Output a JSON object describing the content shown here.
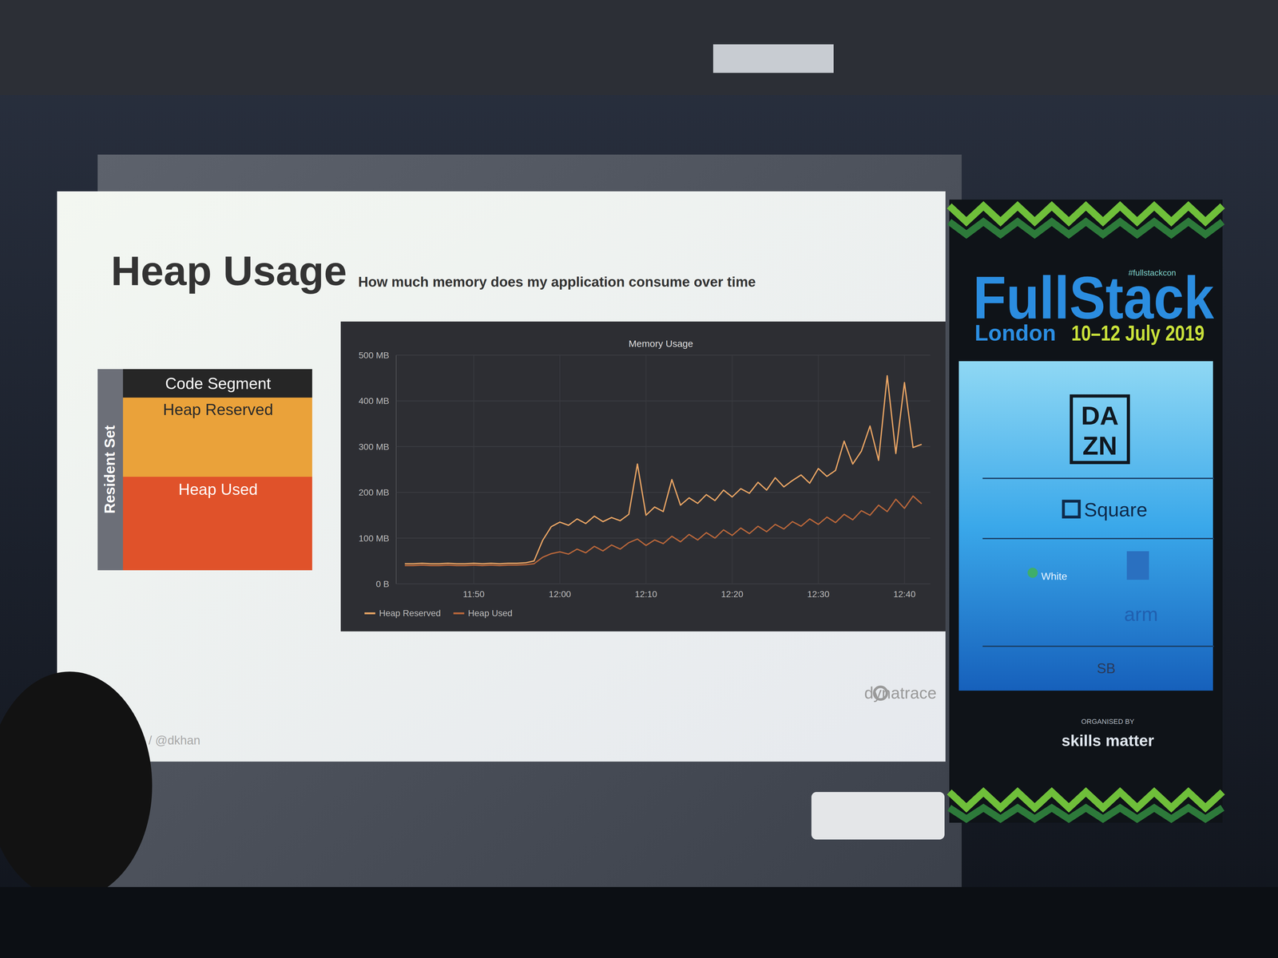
{
  "slide": {
    "title": "Heap Usage",
    "subtitle": "How much memory does my application consume over time",
    "footer": "n / @dkhan",
    "logo": "dynatrace",
    "diagram": {
      "side_label": "Resident Set",
      "segments": [
        "Code Segment",
        "Heap Reserved",
        "Heap Used"
      ]
    }
  },
  "banner": {
    "hashtag": "#fullstackcon",
    "name": "FullStack",
    "city": "London",
    "dates": "10–12 July 2019",
    "dazn_logo": [
      "DA",
      "ZN"
    ],
    "sponsors": [
      "Square",
      "White",
      "arm",
      "SB"
    ],
    "organised_by": "ORGANISED BY",
    "organiser": "skills matter"
  },
  "chart_data": {
    "type": "line",
    "title": "Memory Usage",
    "x": [
      702,
      703,
      704,
      705,
      706,
      707,
      708,
      709,
      710,
      711,
      712,
      713,
      714,
      715,
      716,
      717,
      718,
      719,
      720,
      721,
      722,
      723,
      724,
      725,
      726,
      727,
      728,
      729,
      730,
      731,
      732,
      733,
      734,
      735,
      736,
      737,
      738,
      739,
      740,
      741,
      742,
      743,
      744,
      745,
      746,
      747,
      748,
      749,
      750,
      751,
      752,
      753,
      754,
      755,
      756,
      757,
      758,
      759,
      760,
      761,
      762
    ],
    "xlim": [
      701,
      763
    ],
    "xticks": [
      {
        "value": 710,
        "label": "11:50"
      },
      {
        "value": 720,
        "label": "12:00"
      },
      {
        "value": 730,
        "label": "12:10"
      },
      {
        "value": 740,
        "label": "12:20"
      },
      {
        "value": 750,
        "label": "12:30"
      },
      {
        "value": 760,
        "label": "12:40"
      }
    ],
    "ylim": [
      0,
      500
    ],
    "yticks": [
      {
        "value": 0,
        "label": "0 B"
      },
      {
        "value": 100,
        "label": "100 MB"
      },
      {
        "value": 200,
        "label": "200 MB"
      },
      {
        "value": 300,
        "label": "300 MB"
      },
      {
        "value": 400,
        "label": "400 MB"
      },
      {
        "value": 500,
        "label": "500 MB"
      }
    ],
    "grid": true,
    "legend": "bottom-left",
    "series": [
      {
        "name": "Heap Reserved",
        "color": "#e8a464",
        "values": [
          44,
          44,
          45,
          44,
          44,
          45,
          44,
          44,
          45,
          44,
          45,
          44,
          45,
          45,
          46,
          50,
          95,
          125,
          135,
          128,
          142,
          132,
          148,
          136,
          145,
          138,
          152,
          262,
          150,
          168,
          158,
          228,
          172,
          188,
          176,
          195,
          182,
          205,
          190,
          208,
          198,
          222,
          205,
          232,
          212,
          226,
          238,
          220,
          252,
          235,
          248,
          312,
          262,
          290,
          345,
          270,
          455,
          285,
          440,
          298,
          305
        ]
      },
      {
        "name": "Heap Used",
        "color": "#b8663a",
        "values": [
          40,
          40,
          41,
          40,
          40,
          41,
          40,
          40,
          41,
          40,
          41,
          40,
          41,
          41,
          42,
          44,
          58,
          66,
          70,
          65,
          76,
          68,
          82,
          72,
          85,
          76,
          90,
          98,
          84,
          96,
          88,
          104,
          92,
          108,
          96,
          112,
          100,
          118,
          106,
          122,
          110,
          126,
          114,
          130,
          120,
          136,
          126,
          142,
          130,
          146,
          134,
          152,
          140,
          160,
          150,
          172,
          158,
          185,
          165,
          192,
          175
        ]
      }
    ]
  }
}
